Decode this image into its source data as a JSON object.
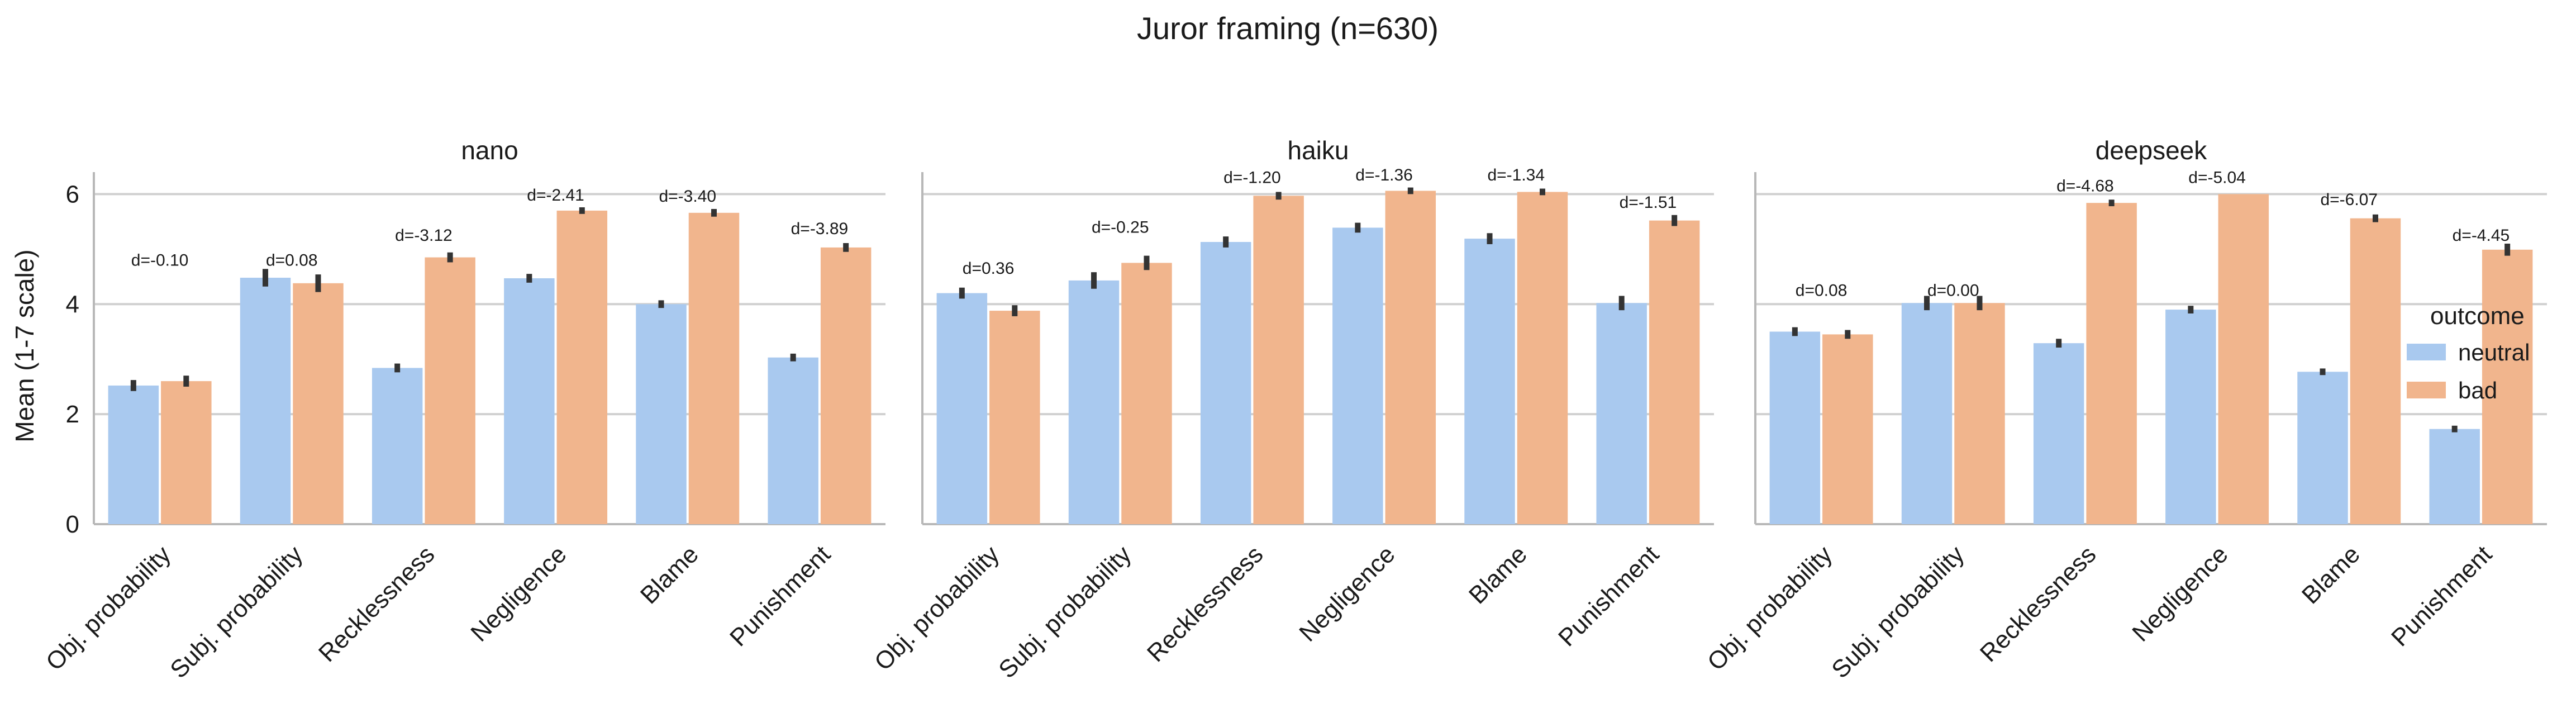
{
  "chart_data": {
    "type": "bar",
    "title": "Juror framing (n=630)",
    "ylabel": "Mean (1-7 scale)",
    "ylim": [
      0,
      6.4
    ],
    "yticks": [
      "0",
      "2",
      "4",
      "6"
    ],
    "grid": true,
    "legend_placement": "right",
    "legend_title": "outcome",
    "categories": [
      "Obj. probability",
      "Subj. probability",
      "Recklessness",
      "Negligence",
      "Blame",
      "Punishment"
    ],
    "series_names": [
      "neutral",
      "bad"
    ],
    "colors": {
      "neutral": "#a9c9ef",
      "bad": "#f1b58d"
    },
    "panels": [
      {
        "title": "nano",
        "neutral": [
          2.52,
          4.48,
          2.84,
          4.47,
          4.0,
          3.03
        ],
        "bad": [
          2.6,
          4.38,
          4.85,
          5.7,
          5.66,
          5.03
        ],
        "neutral_err": [
          0.1,
          0.16,
          0.08,
          0.08,
          0.07,
          0.07
        ],
        "bad_err": [
          0.1,
          0.16,
          0.09,
          0.06,
          0.07,
          0.08
        ],
        "d_labels": [
          "d=-0.10",
          "d=0.08",
          "d=-3.12",
          "d=-2.41",
          "d=-3.40",
          "d=-3.89"
        ],
        "d_values": [
          4.7,
          4.7,
          5.15,
          5.88,
          5.86,
          5.27
        ]
      },
      {
        "title": "haiku",
        "neutral": [
          4.2,
          4.43,
          5.13,
          5.39,
          5.19,
          4.02
        ],
        "bad": [
          3.88,
          4.75,
          5.97,
          6.06,
          6.04,
          5.52
        ],
        "neutral_err": [
          0.1,
          0.15,
          0.1,
          0.09,
          0.1,
          0.13
        ],
        "bad_err": [
          0.1,
          0.13,
          0.07,
          0.06,
          0.06,
          0.1
        ],
        "d_labels": [
          "d=0.36",
          "d=-0.25",
          "d=-1.20",
          "d=-1.36",
          "d=-1.34",
          "d=-1.51"
        ],
        "d_values": [
          4.55,
          5.3,
          6.2,
          6.25,
          6.25,
          5.75
        ]
      },
      {
        "title": "deepseek",
        "neutral": [
          3.5,
          4.02,
          3.29,
          3.9,
          2.77,
          1.73
        ],
        "bad": [
          3.45,
          4.02,
          5.84,
          6.0,
          5.56,
          4.99
        ],
        "neutral_err": [
          0.08,
          0.13,
          0.08,
          0.07,
          0.06,
          0.06
        ],
        "bad_err": [
          0.08,
          0.13,
          0.06,
          0.0,
          0.07,
          0.11
        ],
        "d_labels": [
          "d=0.08",
          "d=0.00",
          "d=-4.68",
          "d=-5.04",
          "d=-6.07",
          "d=-4.45"
        ],
        "d_values": [
          4.15,
          4.15,
          6.05,
          6.2,
          5.8,
          5.15
        ]
      }
    ]
  }
}
